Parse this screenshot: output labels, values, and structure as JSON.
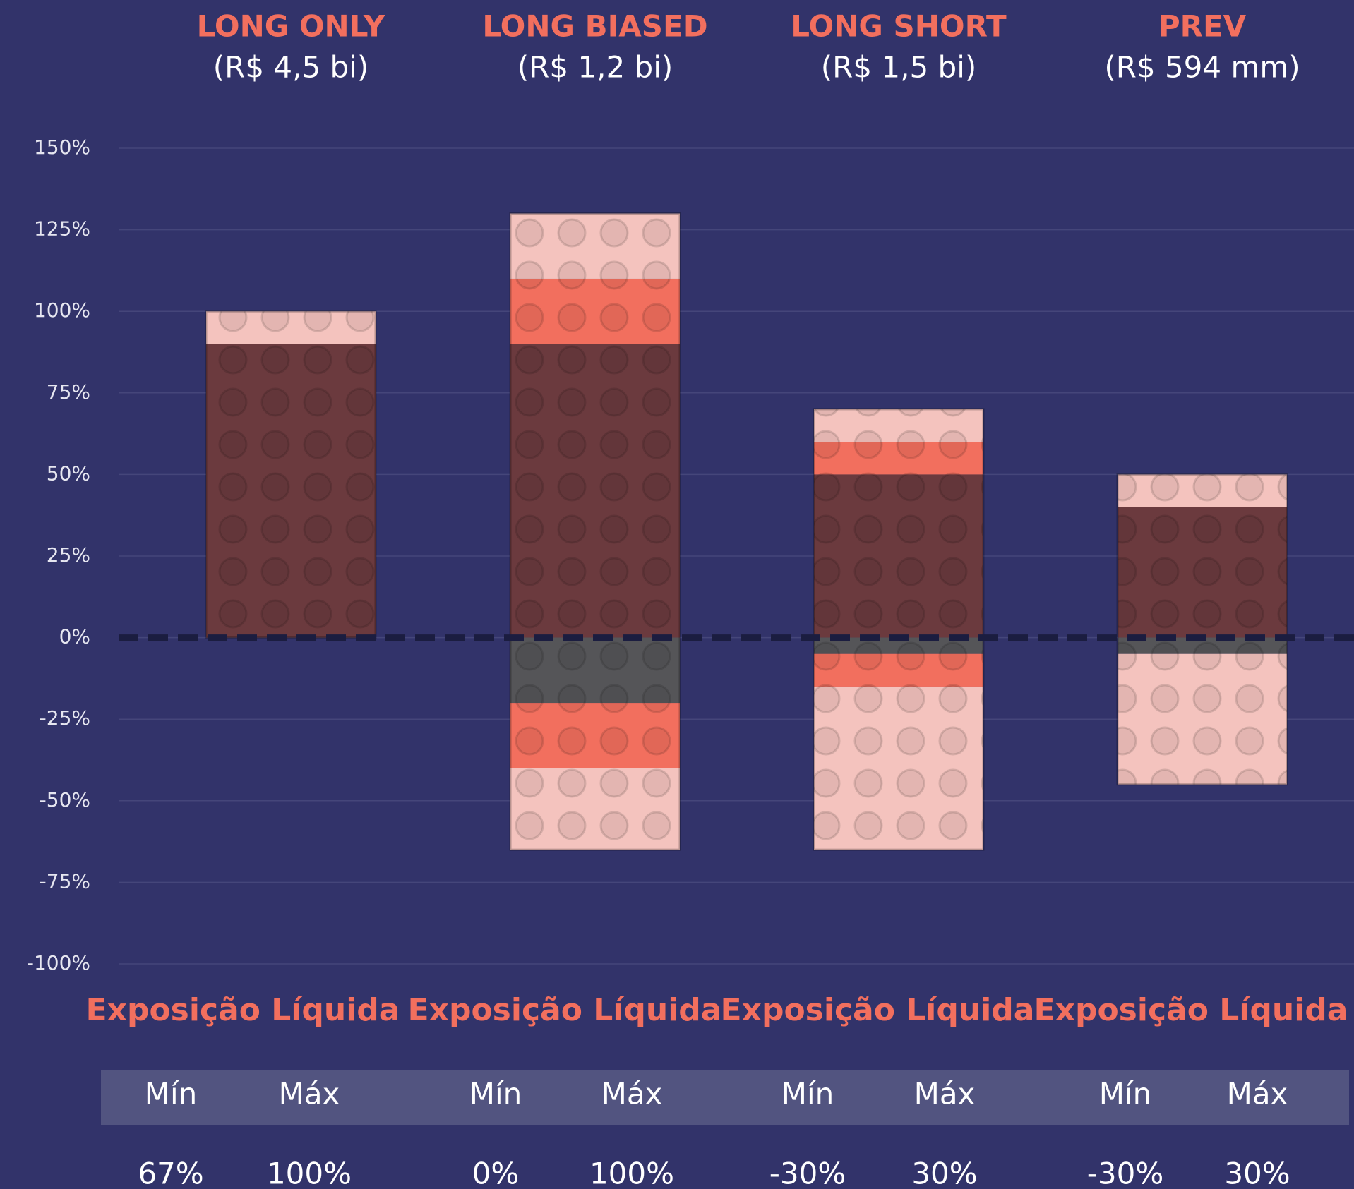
{
  "chart_data": {
    "type": "bar",
    "stacked": true,
    "categories": [
      "LONG ONLY",
      "LONG BIASED",
      "LONG SHORT",
      "PREV"
    ],
    "category_subtitles": [
      "(R$ 4,5 bi)",
      "(R$ 1,2 bi)",
      "(R$ 1,5 bi)",
      "(R$ 594 mm)"
    ],
    "series": [
      {
        "color": "#6b3a3e",
        "values": [
          90,
          90,
          50,
          40
        ]
      },
      {
        "color": "#f26f5e",
        "values": [
          0,
          20,
          10,
          0
        ]
      },
      {
        "color": "#f4c3be",
        "values": [
          10,
          20,
          10,
          10
        ]
      },
      {
        "color": "#555558",
        "values": [
          0,
          -20,
          -5,
          -5
        ]
      },
      {
        "color": "#f26f5e",
        "values": [
          0,
          -20,
          -10,
          0
        ]
      },
      {
        "color": "#f4c3be",
        "values": [
          0,
          -25,
          -50,
          -40
        ]
      }
    ],
    "ylim": [
      -100,
      150
    ],
    "yticks": [
      {
        "value": 150,
        "label": "150%"
      },
      {
        "value": 125,
        "label": "125%"
      },
      {
        "value": 100,
        "label": "100%"
      },
      {
        "value": 75,
        "label": "75%"
      },
      {
        "value": 50,
        "label": "50%"
      },
      {
        "value": 25,
        "label": "25%"
      },
      {
        "value": 0,
        "label": "0%"
      },
      {
        "value": -25,
        "label": "-25%"
      },
      {
        "value": -50,
        "label": "-50%"
      },
      {
        "value": -75,
        "label": "-75%"
      },
      {
        "value": -100,
        "label": "-100%"
      }
    ],
    "grid": true
  },
  "net_exposure": {
    "captions": [
      "Exposição Líquida",
      "Exposição Líquida",
      "Exposição Líquida",
      "Exposição Líquida"
    ],
    "header": [
      [
        "Mín",
        "Máx"
      ],
      [
        "Mín",
        "Máx"
      ],
      [
        "Mín",
        "Máx"
      ],
      [
        "Mín",
        "Máx"
      ]
    ],
    "rows": [
      [
        "67%",
        "100%"
      ],
      [
        "0%",
        "100%"
      ],
      [
        "-30%",
        "30%"
      ],
      [
        "-30%",
        "30%"
      ]
    ]
  }
}
